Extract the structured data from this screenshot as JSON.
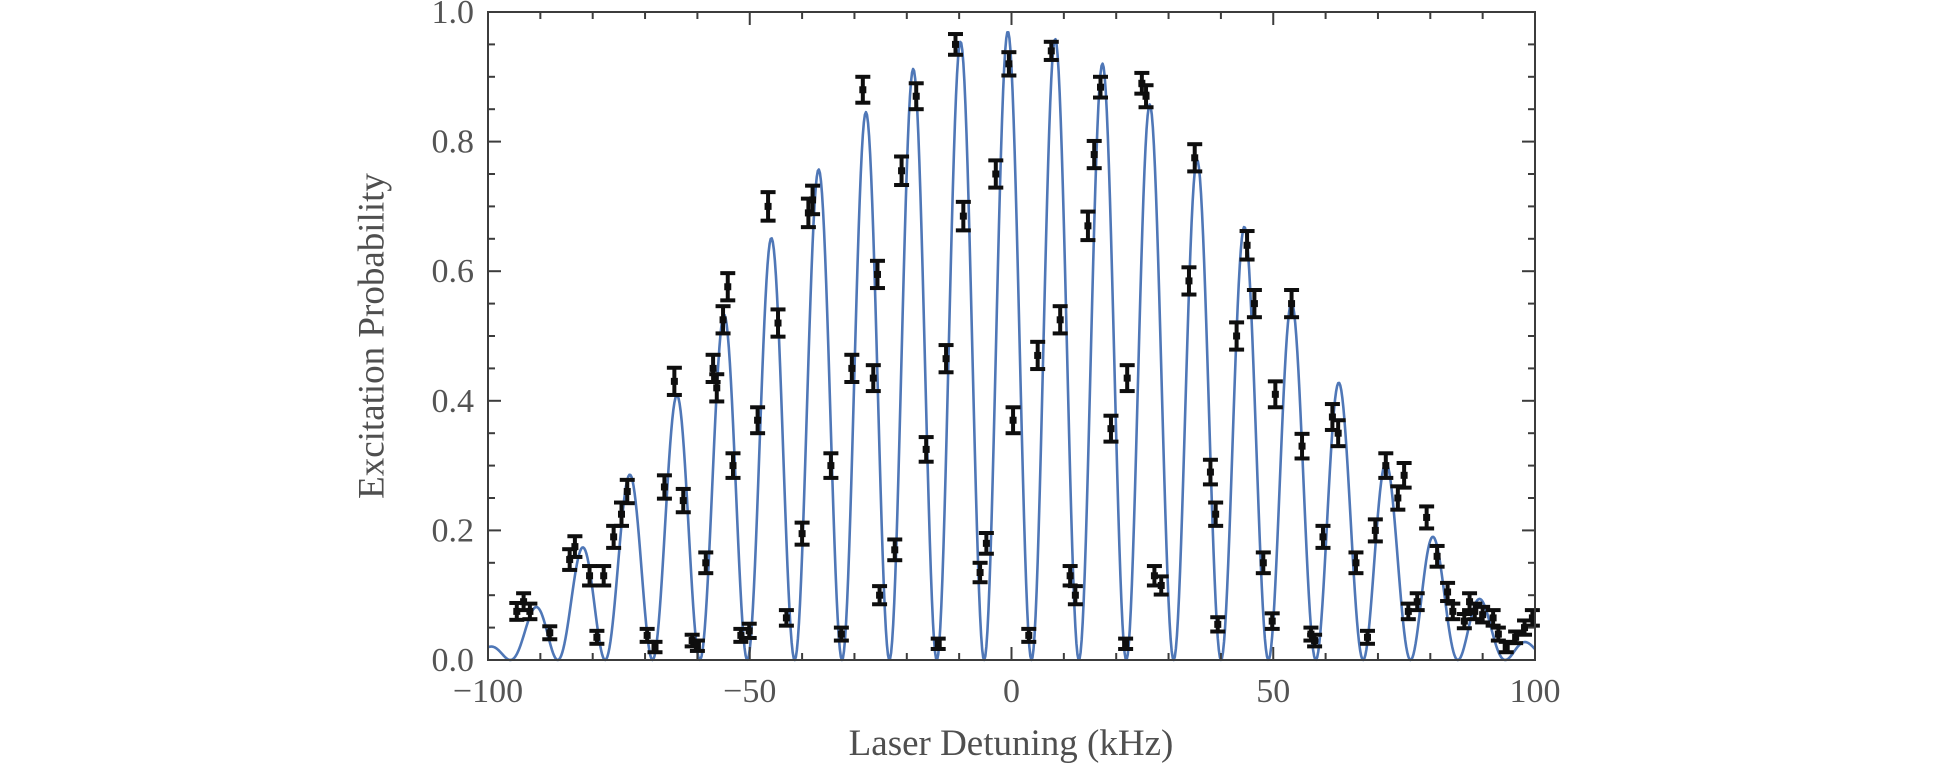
{
  "figure": {
    "background": "#ffffff"
  },
  "chart_data": {
    "type": "line+scatter",
    "title": "",
    "xlabel": "Laser Detuning (kHz)",
    "ylabel": "Excitation Probability",
    "xlim": [
      -100,
      100
    ],
    "ylim": [
      0,
      1.0
    ],
    "grid": false,
    "legend": null,
    "frame": true,
    "x_axis": {
      "major_ticks": [
        -100,
        -50,
        0,
        50,
        100
      ],
      "major_labels": [
        "−100",
        "−50",
        "0",
        "50",
        "100"
      ],
      "minor_step": 10
    },
    "y_axis": {
      "major_ticks": [
        0,
        0.2,
        0.4,
        0.6,
        0.8,
        1.0
      ],
      "major_labels": [
        "0.0",
        "0.2",
        "0.4",
        "0.6",
        "0.8",
        "1.0"
      ],
      "minor_step": 0.05
    },
    "colors": {
      "curve": "#4f77b7",
      "points": "#0e0e0e",
      "frame": "#3c3c3c",
      "tick_labels": "#545454",
      "axis_titles": "#4f4f4f"
    },
    "curve_model": {
      "description": "Fringe fit: P(d) = A*(1-(d/L)^2)^2 * cos^2(pi*(d-delta0)/s)",
      "A": 0.97,
      "L": 108,
      "s": 9.05,
      "delta0": -0.7,
      "sample_step": 0.2
    },
    "points_format": [
      "detuning_kHz",
      "excitation_probability",
      "error"
    ],
    "points": [
      [
        -94.5,
        0.075,
        0.013
      ],
      [
        -93.2,
        0.09,
        0.013
      ],
      [
        -92.0,
        0.075,
        0.012
      ],
      [
        -88.2,
        0.042,
        0.01
      ],
      [
        -84.4,
        0.155,
        0.016
      ],
      [
        -83.4,
        0.175,
        0.016
      ],
      [
        -80.6,
        0.13,
        0.015
      ],
      [
        -79.2,
        0.035,
        0.01
      ],
      [
        -77.9,
        0.13,
        0.015
      ],
      [
        -76.0,
        0.19,
        0.017
      ],
      [
        -74.5,
        0.225,
        0.018
      ],
      [
        -73.4,
        0.26,
        0.018
      ],
      [
        -69.6,
        0.038,
        0.01
      ],
      [
        -68.1,
        0.02,
        0.008
      ],
      [
        -66.3,
        0.267,
        0.018
      ],
      [
        -64.4,
        0.43,
        0.021
      ],
      [
        -62.7,
        0.246,
        0.018
      ],
      [
        -61.0,
        0.03,
        0.009
      ],
      [
        -60.0,
        0.022,
        0.008
      ],
      [
        -58.4,
        0.15,
        0.016
      ],
      [
        -57.0,
        0.45,
        0.021
      ],
      [
        -56.3,
        0.42,
        0.021
      ],
      [
        -55.1,
        0.525,
        0.021
      ],
      [
        -54.2,
        0.576,
        0.021
      ],
      [
        -53.2,
        0.3,
        0.019
      ],
      [
        -51.7,
        0.038,
        0.01
      ],
      [
        -50.1,
        0.045,
        0.011
      ],
      [
        -48.5,
        0.37,
        0.02
      ],
      [
        -46.5,
        0.7,
        0.022
      ],
      [
        -44.6,
        0.52,
        0.021
      ],
      [
        -43.0,
        0.065,
        0.012
      ],
      [
        -40.0,
        0.195,
        0.017
      ],
      [
        -38.8,
        0.69,
        0.022
      ],
      [
        -38.0,
        0.71,
        0.022
      ],
      [
        -34.5,
        0.3,
        0.019
      ],
      [
        -32.5,
        0.04,
        0.01
      ],
      [
        -30.5,
        0.45,
        0.021
      ],
      [
        -28.4,
        0.88,
        0.02
      ],
      [
        -26.4,
        0.435,
        0.02
      ],
      [
        -25.6,
        0.595,
        0.021
      ],
      [
        -25.2,
        0.1,
        0.014
      ],
      [
        -22.3,
        0.17,
        0.016
      ],
      [
        -21.0,
        0.755,
        0.022
      ],
      [
        -18.2,
        0.87,
        0.02
      ],
      [
        -16.3,
        0.325,
        0.019
      ],
      [
        -14.0,
        0.025,
        0.008
      ],
      [
        -12.5,
        0.465,
        0.021
      ],
      [
        -10.7,
        0.95,
        0.016
      ],
      [
        -9.2,
        0.685,
        0.022
      ],
      [
        -6.0,
        0.135,
        0.015
      ],
      [
        -4.8,
        0.18,
        0.016
      ],
      [
        -3.0,
        0.75,
        0.021
      ],
      [
        -0.5,
        0.92,
        0.018
      ],
      [
        0.3,
        0.37,
        0.02
      ],
      [
        3.3,
        0.038,
        0.01
      ],
      [
        5.0,
        0.47,
        0.021
      ],
      [
        7.6,
        0.94,
        0.014
      ],
      [
        9.3,
        0.525,
        0.021
      ],
      [
        11.2,
        0.13,
        0.015
      ],
      [
        12.2,
        0.1,
        0.014
      ],
      [
        14.6,
        0.67,
        0.022
      ],
      [
        15.8,
        0.78,
        0.021
      ],
      [
        17.0,
        0.884,
        0.016
      ],
      [
        19.0,
        0.357,
        0.02
      ],
      [
        21.8,
        0.025,
        0.008
      ],
      [
        22.1,
        0.435,
        0.02
      ],
      [
        24.9,
        0.89,
        0.016
      ],
      [
        25.7,
        0.87,
        0.017
      ],
      [
        27.3,
        0.13,
        0.015
      ],
      [
        28.6,
        0.115,
        0.014
      ],
      [
        33.9,
        0.585,
        0.021
      ],
      [
        35.0,
        0.775,
        0.021
      ],
      [
        38.0,
        0.29,
        0.019
      ],
      [
        39.0,
        0.225,
        0.018
      ],
      [
        39.4,
        0.055,
        0.011
      ],
      [
        43.0,
        0.5,
        0.021
      ],
      [
        45.0,
        0.64,
        0.022
      ],
      [
        46.4,
        0.55,
        0.021
      ],
      [
        48.1,
        0.15,
        0.016
      ],
      [
        49.8,
        0.06,
        0.012
      ],
      [
        50.4,
        0.41,
        0.02
      ],
      [
        53.5,
        0.55,
        0.021
      ],
      [
        55.5,
        0.33,
        0.019
      ],
      [
        57.2,
        0.04,
        0.01
      ],
      [
        57.9,
        0.03,
        0.009
      ],
      [
        59.5,
        0.19,
        0.017
      ],
      [
        61.3,
        0.375,
        0.02
      ],
      [
        62.4,
        0.35,
        0.02
      ],
      [
        65.8,
        0.15,
        0.016
      ],
      [
        68.0,
        0.035,
        0.01
      ],
      [
        69.5,
        0.2,
        0.017
      ],
      [
        71.5,
        0.3,
        0.019
      ],
      [
        73.8,
        0.25,
        0.018
      ],
      [
        75.0,
        0.285,
        0.019
      ],
      [
        75.8,
        0.075,
        0.012
      ],
      [
        77.5,
        0.09,
        0.013
      ],
      [
        79.3,
        0.22,
        0.017
      ],
      [
        81.3,
        0.16,
        0.016
      ],
      [
        83.3,
        0.105,
        0.014
      ],
      [
        84.3,
        0.075,
        0.012
      ],
      [
        86.5,
        0.06,
        0.011
      ],
      [
        87.5,
        0.09,
        0.013
      ],
      [
        88.5,
        0.075,
        0.012
      ],
      [
        90.0,
        0.07,
        0.012
      ],
      [
        92.0,
        0.065,
        0.012
      ],
      [
        93.0,
        0.04,
        0.01
      ],
      [
        94.5,
        0.02,
        0.008
      ],
      [
        96.3,
        0.035,
        0.009
      ],
      [
        98.0,
        0.05,
        0.011
      ],
      [
        99.5,
        0.065,
        0.012
      ]
    ]
  }
}
